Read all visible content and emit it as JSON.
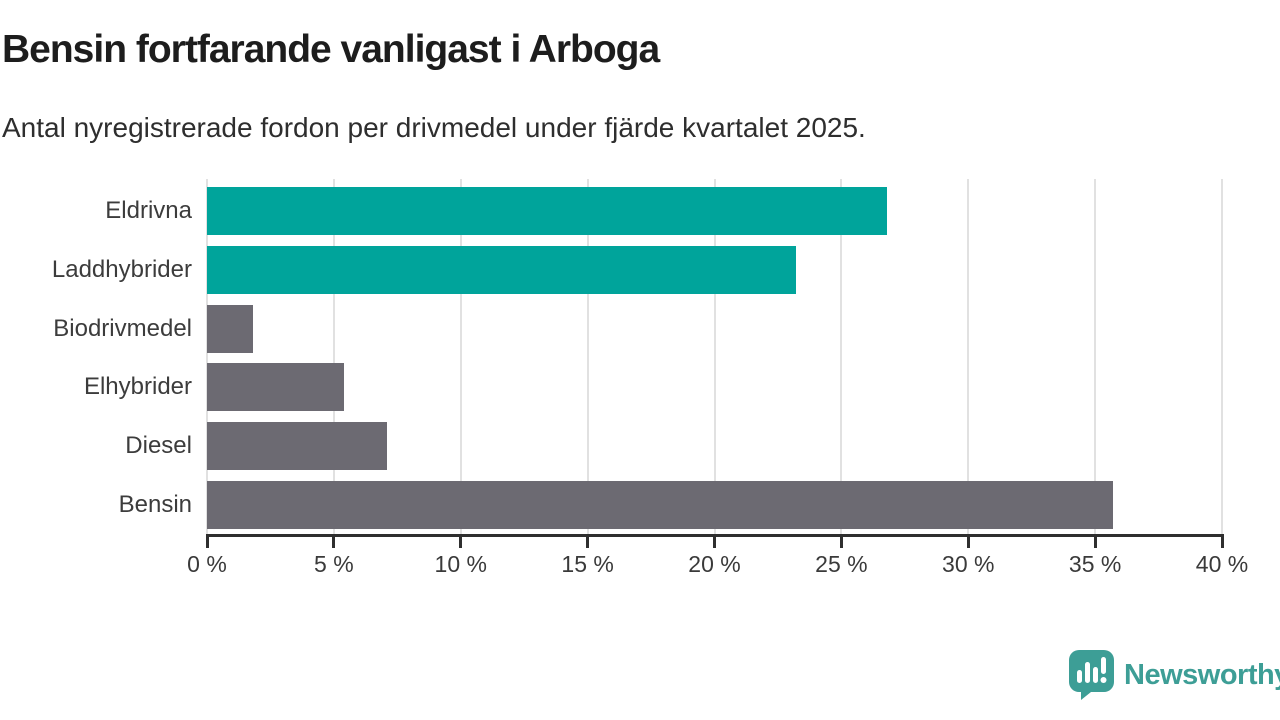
{
  "header": {
    "title": "Bensin fortfarande vanligast i Arboga",
    "subtitle": "Antal nyregistrerade fordon per drivmedel under fjärde kvartalet 2025."
  },
  "chart_data": {
    "type": "bar",
    "orientation": "horizontal",
    "title": "Bensin fortfarande vanligast i Arboga",
    "subtitle": "Antal nyregistrerade fordon per drivmedel under fjärde kvartalet 2025.",
    "categories": [
      "Eldrivna",
      "Laddhybrider",
      "Biodrivmedel",
      "Elhybrider",
      "Diesel",
      "Bensin"
    ],
    "values": [
      26.8,
      23.2,
      1.8,
      5.4,
      7.1,
      35.7
    ],
    "unit": "%",
    "bar_colors": [
      "#00a49b",
      "#00a49b",
      "#6c6a72",
      "#6c6a72",
      "#6c6a72",
      "#6c6a72"
    ],
    "xlabel": "",
    "ylabel": "",
    "xlim": [
      0,
      40
    ],
    "x_ticks": [
      0,
      5,
      10,
      15,
      20,
      25,
      30,
      35,
      40
    ],
    "x_tick_labels": [
      "0 %",
      "5 %",
      "10 %",
      "15 %",
      "20 %",
      "25 %",
      "30 %",
      "35 %",
      "40 %"
    ],
    "grid": true,
    "legend": false
  },
  "footer": {
    "brand": "Newsworthy",
    "brand_color": "#3d9e96"
  },
  "colors": {
    "accent_teal": "#00a49b",
    "neutral_gray": "#6c6a72",
    "axis": "#2f2f2f",
    "gridline": "#e1e1e1",
    "title_text": "#1d1d1d"
  }
}
